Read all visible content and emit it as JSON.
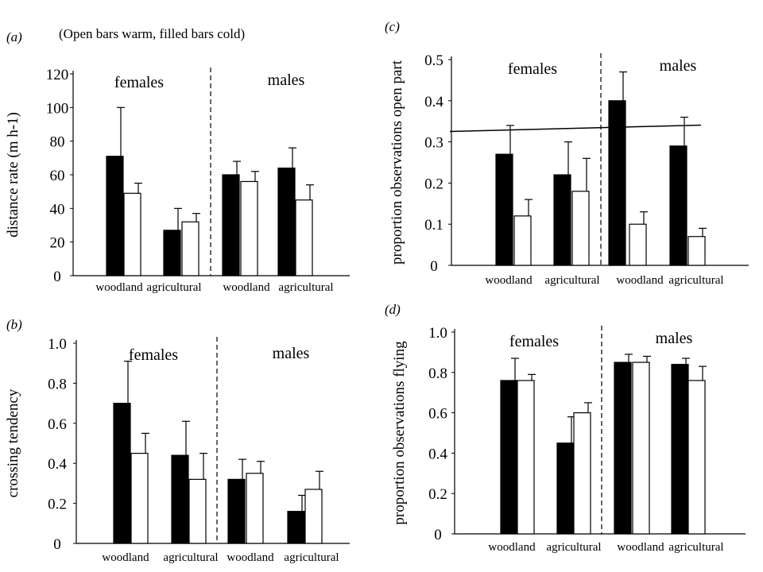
{
  "caption": "(Open bars warm, filled bars cold)",
  "chart_data": [
    {
      "panel": "(a)",
      "type": "bar",
      "ylabel": "distance rate (m h-1)",
      "ylim": [
        0,
        120
      ],
      "yticks": [
        "0",
        "20",
        "40",
        "60",
        "80",
        "100",
        "120"
      ],
      "groups": [
        "females",
        "males"
      ],
      "categories": [
        "woodland",
        "agricultural",
        "woodland",
        "agricultural"
      ],
      "series": [
        {
          "fill": "#000000",
          "values": [
            71,
            27,
            60,
            64
          ],
          "errors": [
            29,
            13,
            8,
            12
          ]
        },
        {
          "fill": "#ffffff",
          "values": [
            49,
            32,
            56,
            45
          ],
          "errors": [
            6,
            5,
            6,
            9
          ]
        }
      ],
      "reference_line": null
    },
    {
      "panel": "(b)",
      "type": "bar",
      "ylabel": "crossing tendency",
      "ylim": [
        0,
        1.0
      ],
      "yticks": [
        "0",
        "0.2",
        "0.4",
        "0.6",
        "0.8",
        "1.0"
      ],
      "groups": [
        "females",
        "males"
      ],
      "categories": [
        "woodland",
        "agricultural",
        "woodland",
        "agricultural"
      ],
      "series": [
        {
          "fill": "#000000",
          "values": [
            0.7,
            0.44,
            0.32,
            0.16
          ],
          "errors": [
            0.21,
            0.17,
            0.1,
            0.08
          ]
        },
        {
          "fill": "#ffffff",
          "values": [
            0.45,
            0.32,
            0.35,
            0.27
          ],
          "errors": [
            0.1,
            0.13,
            0.06,
            0.09
          ]
        }
      ],
      "reference_line": null
    },
    {
      "panel": "(c)",
      "type": "bar",
      "ylabel": "proportion observations open part",
      "ylim": [
        0,
        0.5
      ],
      "yticks": [
        "0",
        "0.1",
        "0.2",
        "0.3",
        "0.4",
        "0.5"
      ],
      "groups": [
        "females",
        "males"
      ],
      "categories": [
        "woodland",
        "agricultural",
        "woodland",
        "agricultural"
      ],
      "series": [
        {
          "fill": "#000000",
          "values": [
            0.27,
            0.22,
            0.4,
            0.29
          ],
          "errors": [
            0.07,
            0.08,
            0.07,
            0.07
          ]
        },
        {
          "fill": "#ffffff",
          "values": [
            0.12,
            0.18,
            0.1,
            0.07
          ],
          "errors": [
            0.04,
            0.08,
            0.03,
            0.02
          ]
        }
      ],
      "reference_line": 0.335
    },
    {
      "panel": "(d)",
      "type": "bar",
      "ylabel": "proportion observations flying",
      "ylim": [
        0,
        1.0
      ],
      "yticks": [
        "0",
        "0.2",
        "0.4",
        "0.6",
        "0.8",
        "1.0"
      ],
      "groups": [
        "females",
        "males"
      ],
      "categories": [
        "woodland",
        "agricultural",
        "woodland",
        "agricultural"
      ],
      "series": [
        {
          "fill": "#000000",
          "values": [
            0.76,
            0.45,
            0.85,
            0.84
          ],
          "errors": [
            0.11,
            0.13,
            0.04,
            0.03
          ]
        },
        {
          "fill": "#ffffff",
          "values": [
            0.76,
            0.6,
            0.85,
            0.76
          ],
          "errors": [
            0.03,
            0.05,
            0.03,
            0.07
          ]
        }
      ],
      "reference_line": null
    }
  ]
}
